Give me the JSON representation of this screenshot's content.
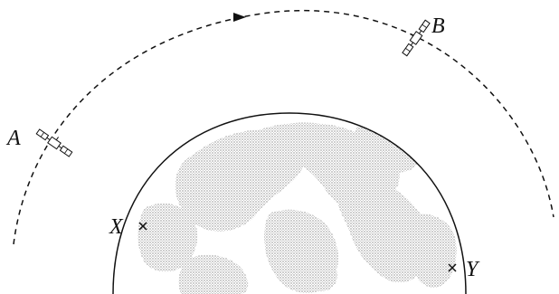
{
  "labels": {
    "satellite_a": "A",
    "satellite_b": "B",
    "point_x": "X",
    "point_y": "Y"
  },
  "icons": [
    "satellite-icon",
    "arrowhead-icon",
    "cross-mark-icon"
  ],
  "colors": {
    "line": "#111111",
    "land_stipple": "#6a6a6a",
    "background": "#ffffff"
  }
}
